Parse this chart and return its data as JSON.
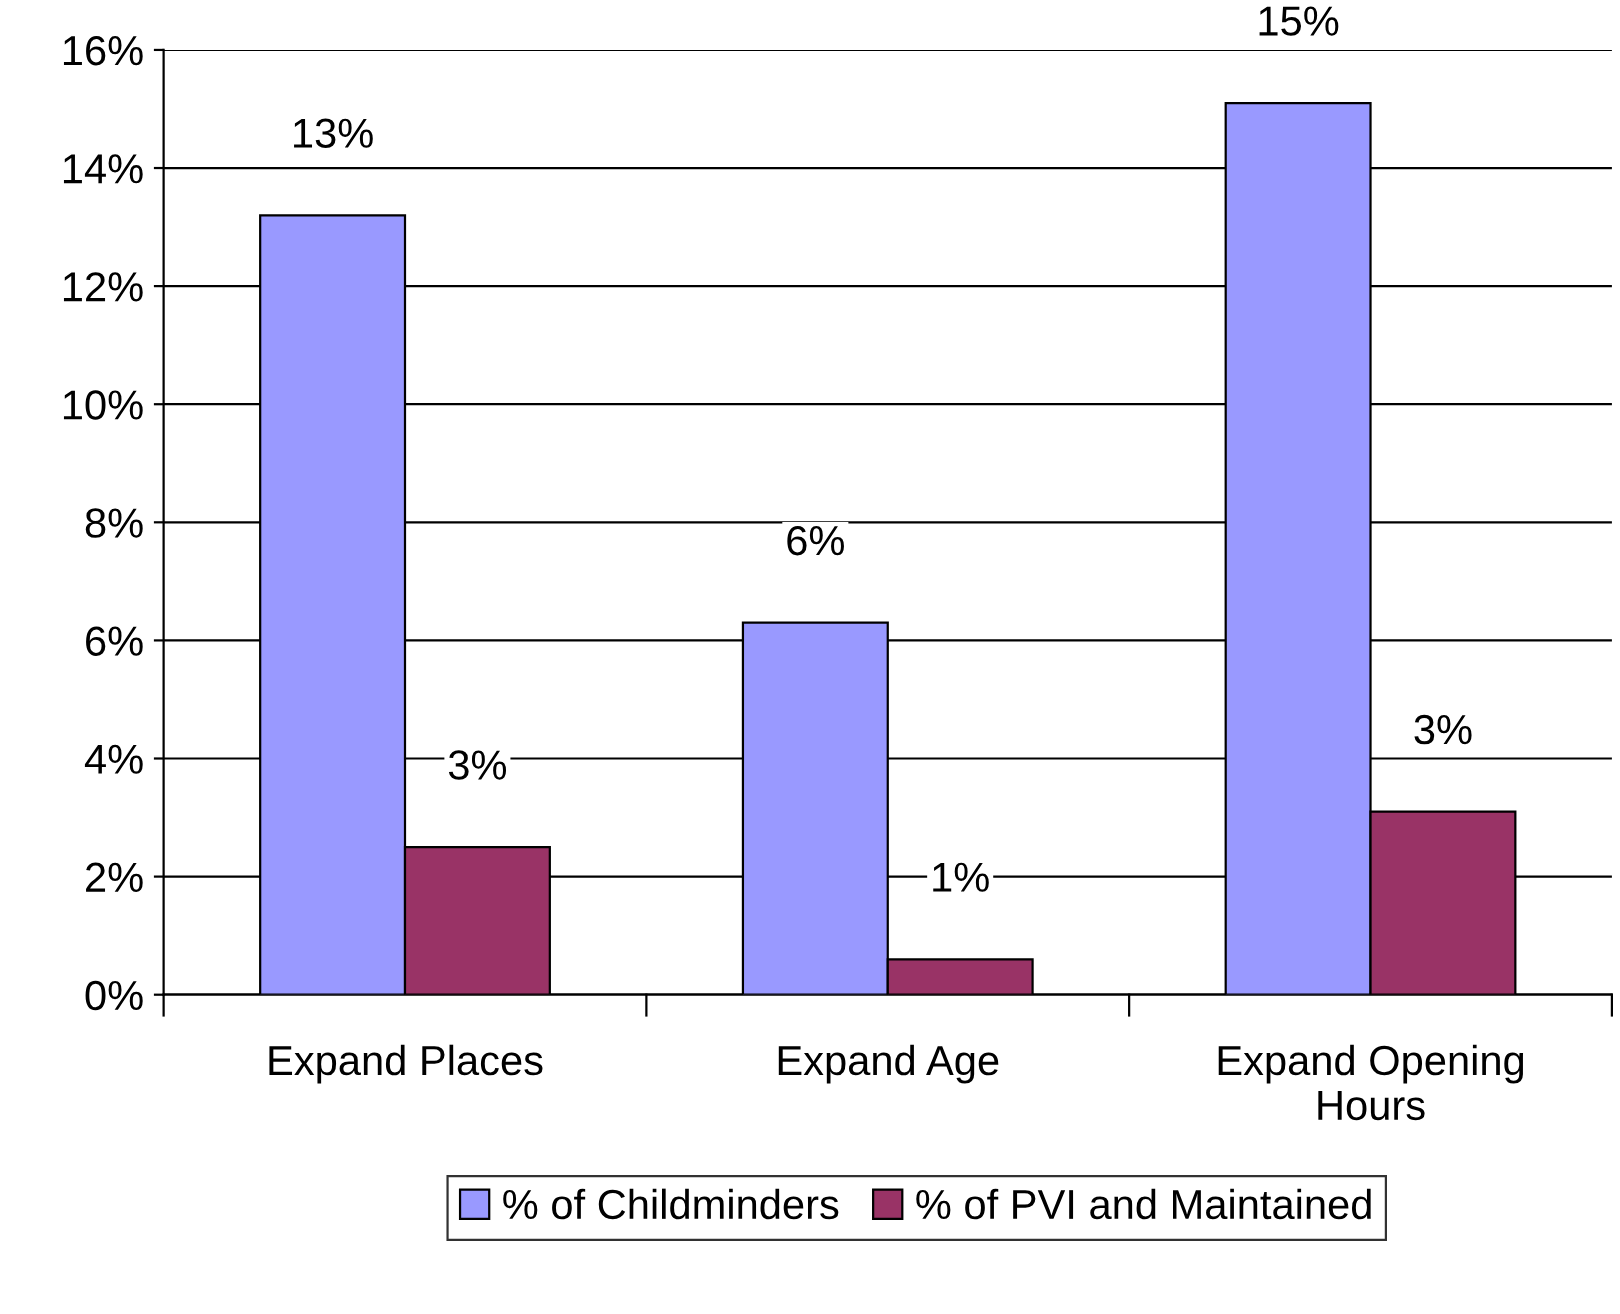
{
  "chart_data": {
    "type": "bar",
    "categories": [
      "Expand Places",
      "Expand Age",
      "Expand Opening\nHours"
    ],
    "series": [
      {
        "name": "% of Childminders",
        "color": "#9999ff",
        "values": [
          13.2,
          6.3,
          15.1
        ],
        "value_labels": [
          "13%",
          "6%",
          "15%"
        ]
      },
      {
        "name": "% of PVI and Maintained",
        "color": "#993366",
        "values": [
          2.5,
          0.6,
          3.1
        ],
        "value_labels": [
          "3%",
          "1%",
          "3%"
        ]
      }
    ],
    "ylim": [
      0,
      16
    ],
    "yticks": [
      {
        "value": 0,
        "label": "0%"
      },
      {
        "value": 2,
        "label": "2%"
      },
      {
        "value": 4,
        "label": "4%"
      },
      {
        "value": 6,
        "label": "6%"
      },
      {
        "value": 8,
        "label": "8%"
      },
      {
        "value": 10,
        "label": "10%"
      },
      {
        "value": 12,
        "label": "12%"
      },
      {
        "value": 14,
        "label": "14%"
      },
      {
        "value": 16,
        "label": "16%"
      }
    ],
    "grid": "y",
    "legend": "bottom"
  }
}
